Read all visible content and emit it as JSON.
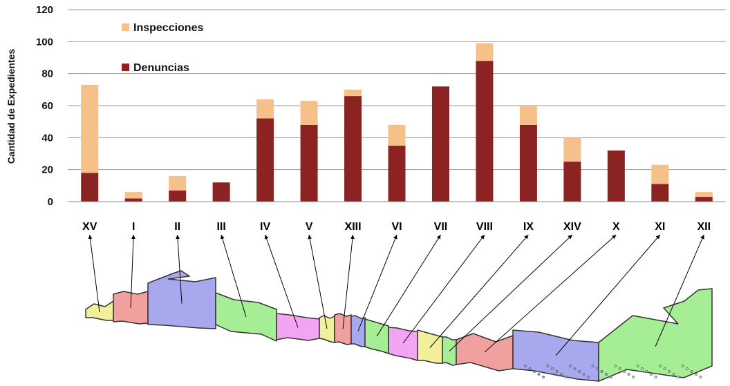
{
  "chart_data": {
    "type": "bar",
    "stacked": true,
    "ylabel": "Cantidad de Expedientes",
    "ylim": [
      0,
      120
    ],
    "yticks": [
      "0",
      "20",
      "40",
      "60",
      "80",
      "100",
      "120"
    ],
    "grid": true,
    "legend_placement": "top-left",
    "categories": [
      "XV",
      "I",
      "II",
      "III",
      "IV",
      "V",
      "XIII",
      "VI",
      "VII",
      "VIII",
      "IX",
      "XIV",
      "X",
      "XI",
      "XII"
    ],
    "series": [
      {
        "name": "Denuncias",
        "color": "#8B2323",
        "values": [
          18,
          2,
          7,
          12,
          52,
          48,
          66,
          35,
          72,
          88,
          48,
          25,
          32,
          11,
          3
        ]
      },
      {
        "name": "Inspecciones",
        "color": "#F5C08A",
        "values": [
          55,
          4,
          9,
          0,
          12,
          15,
          4,
          13,
          0,
          11,
          12,
          15,
          0,
          12,
          3
        ]
      }
    ]
  },
  "map": {
    "regions": [
      {
        "name": "XV",
        "color": "#F2F09A"
      },
      {
        "name": "I",
        "color": "#F1A0A0"
      },
      {
        "name": "II",
        "color": "#A8A8EE"
      },
      {
        "name": "III",
        "color": "#A6EE96"
      },
      {
        "name": "IV",
        "color": "#F2A6F2"
      },
      {
        "name": "V",
        "color": "#F2F09A"
      },
      {
        "name": "XIII",
        "color": "#F1A0A0"
      },
      {
        "name": "VI",
        "color": "#A8A8EE"
      },
      {
        "name": "VII",
        "color": "#A6EE96"
      },
      {
        "name": "VIII",
        "color": "#F2A6F2"
      },
      {
        "name": "IX",
        "color": "#F2F09A"
      },
      {
        "name": "XIV",
        "color": "#A6EE96"
      },
      {
        "name": "X",
        "color": "#F1A0A0"
      },
      {
        "name": "XI",
        "color": "#A8A8EE"
      },
      {
        "name": "XII",
        "color": "#A6EE96"
      }
    ]
  }
}
